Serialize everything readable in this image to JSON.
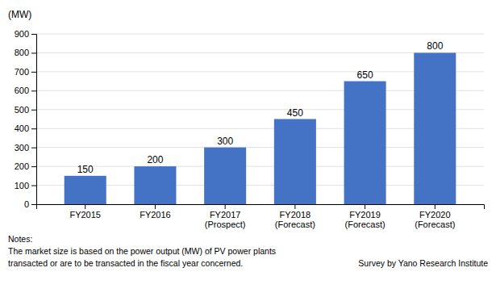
{
  "chart_data": {
    "type": "bar",
    "ylabel": "(MW)",
    "categories": [
      "FY2015",
      "FY2016",
      "FY2017\n(Prospect)",
      "FY2018\n(Forecast)",
      "FY2019\n(Forecast)",
      "FY2020\n(Forecast)"
    ],
    "values": [
      150,
      200,
      300,
      450,
      650,
      800
    ],
    "color": "#4472C4",
    "ylim": [
      0,
      900
    ],
    "yticks": [
      0,
      100,
      200,
      300,
      400,
      500,
      600,
      700,
      800,
      900
    ],
    "grid": true,
    "data_labels": true,
    "annotations": [
      "Notes:",
      "The market size is based on the power output (MW) of PV power plants",
      "transacted or are to be transacted in the fiscal year concerned.",
      "Survey by Yano Research Institute"
    ]
  }
}
